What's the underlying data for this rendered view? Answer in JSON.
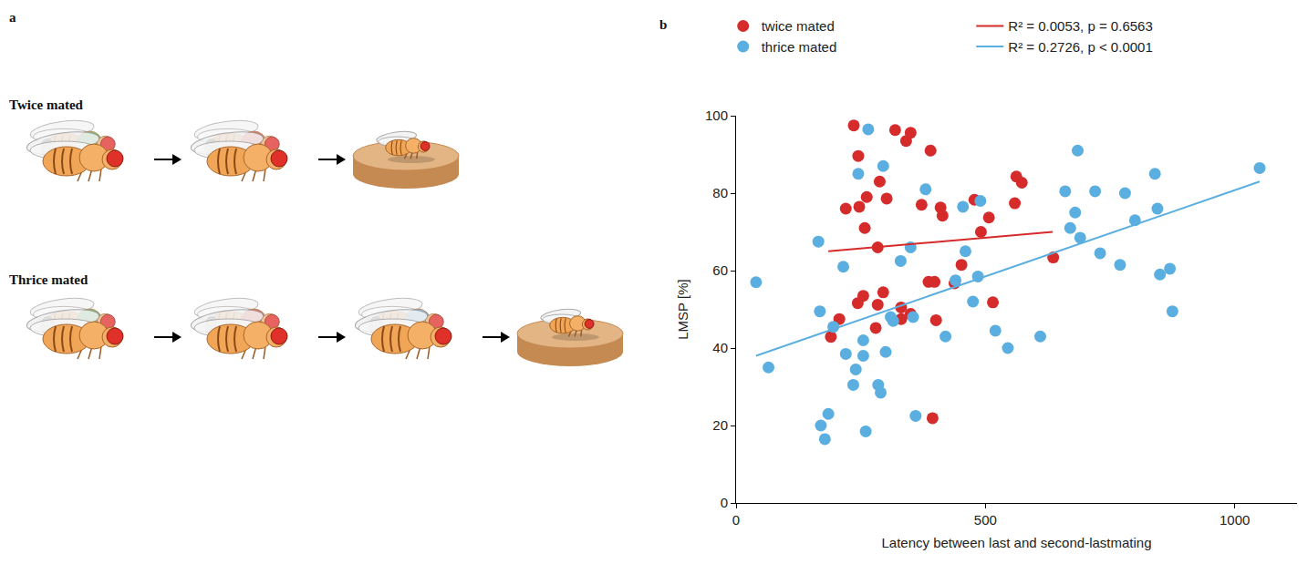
{
  "diagram": {
    "label": "a",
    "rows": [
      {
        "title": "Twice mated",
        "matings": [
          "#4caf50",
          "#e53935"
        ]
      },
      {
        "title": "Thrice mated",
        "matings": [
          "#4caf50",
          "#e53935",
          "#5fb3e6"
        ]
      }
    ]
  },
  "chart_data": {
    "label": "b",
    "type": "scatter",
    "x_label": "Latency between last and second-lastmating",
    "y_label": "LMSP [%]",
    "xlim": [
      0,
      1125
    ],
    "xticks": [
      0,
      500,
      1000
    ],
    "ylim": [
      0,
      100
    ],
    "yticks": [
      0,
      20,
      40,
      60,
      80,
      100
    ],
    "grid": false,
    "legend": "top",
    "series": [
      {
        "name": "twice mated",
        "type": "scatter",
        "marker": "circle",
        "color": "#d62b2b",
        "x": [
          236,
          245,
          220,
          247,
          262,
          258,
          288,
          302,
          319,
          341,
          350,
          390,
          372,
          284,
          410,
          414,
          478,
          491,
          507,
          562,
          573,
          559,
          386,
          398,
          438,
          452,
          295,
          284,
          255,
          244,
          207,
          190,
          280,
          331,
          350,
          401,
          515,
          636,
          394,
          331
        ],
        "values": [
          97.5,
          89.6,
          76,
          76.5,
          79,
          71,
          83,
          78.6,
          96.3,
          93.5,
          95.6,
          91,
          77,
          66,
          76.3,
          74.2,
          78.3,
          70,
          73.7,
          84.3,
          82.7,
          77.4,
          57.1,
          57.1,
          56.7,
          61.5,
          54.4,
          51.2,
          53.5,
          51.6,
          47.5,
          42.9,
          45.2,
          47.5,
          48.8,
          47.2,
          51.8,
          63.4,
          21.9,
          50.5
        ]
      },
      {
        "name": "thrice mated",
        "type": "scatter",
        "marker": "circle",
        "color": "#5aaee0",
        "x": [
          40,
          65,
          165,
          168,
          170,
          178,
          185,
          195,
          215,
          220,
          235,
          240,
          245,
          255,
          255,
          260,
          265,
          295,
          300,
          285,
          290,
          310,
          315,
          330,
          350,
          355,
          360,
          380,
          420,
          440,
          455,
          460,
          475,
          485,
          490,
          520,
          545,
          610,
          660,
          670,
          680,
          685,
          690,
          720,
          730,
          770,
          780,
          800,
          840,
          845,
          850,
          870,
          875,
          1050
        ],
        "values": [
          57,
          35,
          67.5,
          49.5,
          20,
          16.5,
          23,
          45.5,
          61,
          38.5,
          30.5,
          34.5,
          85,
          38,
          42,
          18.5,
          96.5,
          87,
          39,
          30.5,
          28.5,
          48,
          47,
          62.5,
          66,
          48,
          22.5,
          81,
          43,
          57.5,
          76.5,
          65,
          52,
          58.5,
          78,
          44.5,
          40,
          43,
          80.5,
          71,
          75,
          91,
          68.5,
          80.5,
          64.5,
          61.5,
          80,
          73,
          85,
          76,
          59,
          60.5,
          49.5,
          86.5
        ]
      },
      {
        "name": "R² = 0.0053, p = 0.6563",
        "type": "line",
        "line_style": "solid",
        "color": "#d62b2b",
        "x": [
          185,
          635
        ],
        "values": [
          65,
          70
        ]
      },
      {
        "name": "R² = 0.2726, p < 0.0001",
        "type": "line",
        "line_style": "solid",
        "color": "#5aaee0",
        "x": [
          40,
          1050
        ],
        "values": [
          38,
          83
        ]
      }
    ]
  }
}
